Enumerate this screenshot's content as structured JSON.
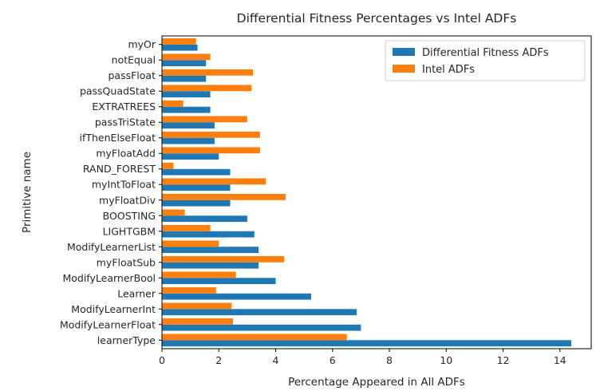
{
  "chart_data": {
    "type": "bar",
    "orientation": "horizontal",
    "title": "Differential Fitness Percentages vs Intel ADFs",
    "xlabel": "Percentage Appeared in All ADFs",
    "ylabel": "Primitive name",
    "xlim": [
      0,
      15.1
    ],
    "xticks": [
      0,
      2,
      4,
      6,
      8,
      10,
      12,
      14
    ],
    "grid": false,
    "legend_position": "top-right",
    "categories": [
      "learnerType",
      "ModifyLearnerFloat",
      "ModifyLearnerInt",
      "Learner",
      "ModifyLearnerBool",
      "myFloatSub",
      "ModifyLearnerList",
      "LIGHTGBM",
      "BOOSTING",
      "myFloatDiv",
      "myIntToFloat",
      "RAND_FOREST",
      "myFloatAdd",
      "ifThenElseFloat",
      "passTriState",
      "EXTRATREES",
      "passQuadState",
      "passFloat",
      "notEqual",
      "myOr"
    ],
    "series": [
      {
        "name": "Differential Fitness ADFs",
        "color": "#1f77b4",
        "values": [
          14.4,
          7.0,
          6.85,
          5.25,
          4.0,
          3.4,
          3.4,
          3.25,
          3.0,
          2.4,
          2.4,
          2.4,
          2.0,
          1.85,
          1.85,
          1.7,
          1.7,
          1.55,
          1.55,
          1.25
        ]
      },
      {
        "name": "Intel ADFs",
        "color": "#ff7f0e",
        "values": [
          6.5,
          2.5,
          2.45,
          1.9,
          2.6,
          4.3,
          2.0,
          1.7,
          0.8,
          4.35,
          3.65,
          0.4,
          3.45,
          3.45,
          3.0,
          0.75,
          3.15,
          3.2,
          1.7,
          1.2
        ]
      }
    ]
  }
}
